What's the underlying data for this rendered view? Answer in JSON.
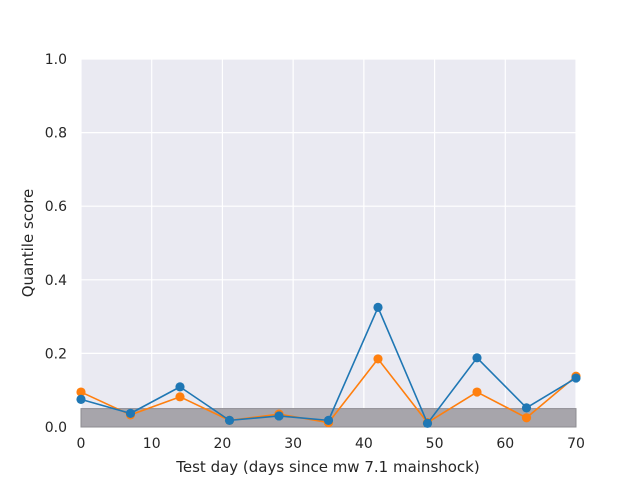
{
  "chart_data": {
    "type": "line",
    "title": "",
    "xlabel": "Test day (days since mw 7.1 mainshock)",
    "ylabel": "Quantile score",
    "xlim": [
      0,
      70
    ],
    "ylim": [
      0,
      1.0
    ],
    "x_ticks": [
      "0",
      "10",
      "20",
      "30",
      "40",
      "50",
      "60",
      "70"
    ],
    "y_ticks": [
      "0.0",
      "0.2",
      "0.4",
      "0.6",
      "0.8",
      "1.0"
    ],
    "grid": true,
    "legend": "none",
    "shaded_band": {
      "y_from": 0.0,
      "y_to": 0.05,
      "color": "#a7a5ab"
    },
    "x": [
      0,
      7,
      14,
      21,
      28,
      35,
      42,
      49,
      56,
      63,
      70
    ],
    "series": [
      {
        "color": "#ff7f0e",
        "values": [
          0.095,
          0.033,
          0.082,
          0.018,
          0.035,
          0.012,
          0.185,
          0.012,
          0.095,
          0.025,
          0.138
        ]
      },
      {
        "color": "#1f77b4",
        "values": [
          0.075,
          0.037,
          0.109,
          0.018,
          0.03,
          0.018,
          0.325,
          0.01,
          0.188,
          0.052,
          0.133
        ]
      }
    ],
    "colors": {
      "plot_background": "#eaeaf2",
      "grid": "#ffffff"
    }
  }
}
